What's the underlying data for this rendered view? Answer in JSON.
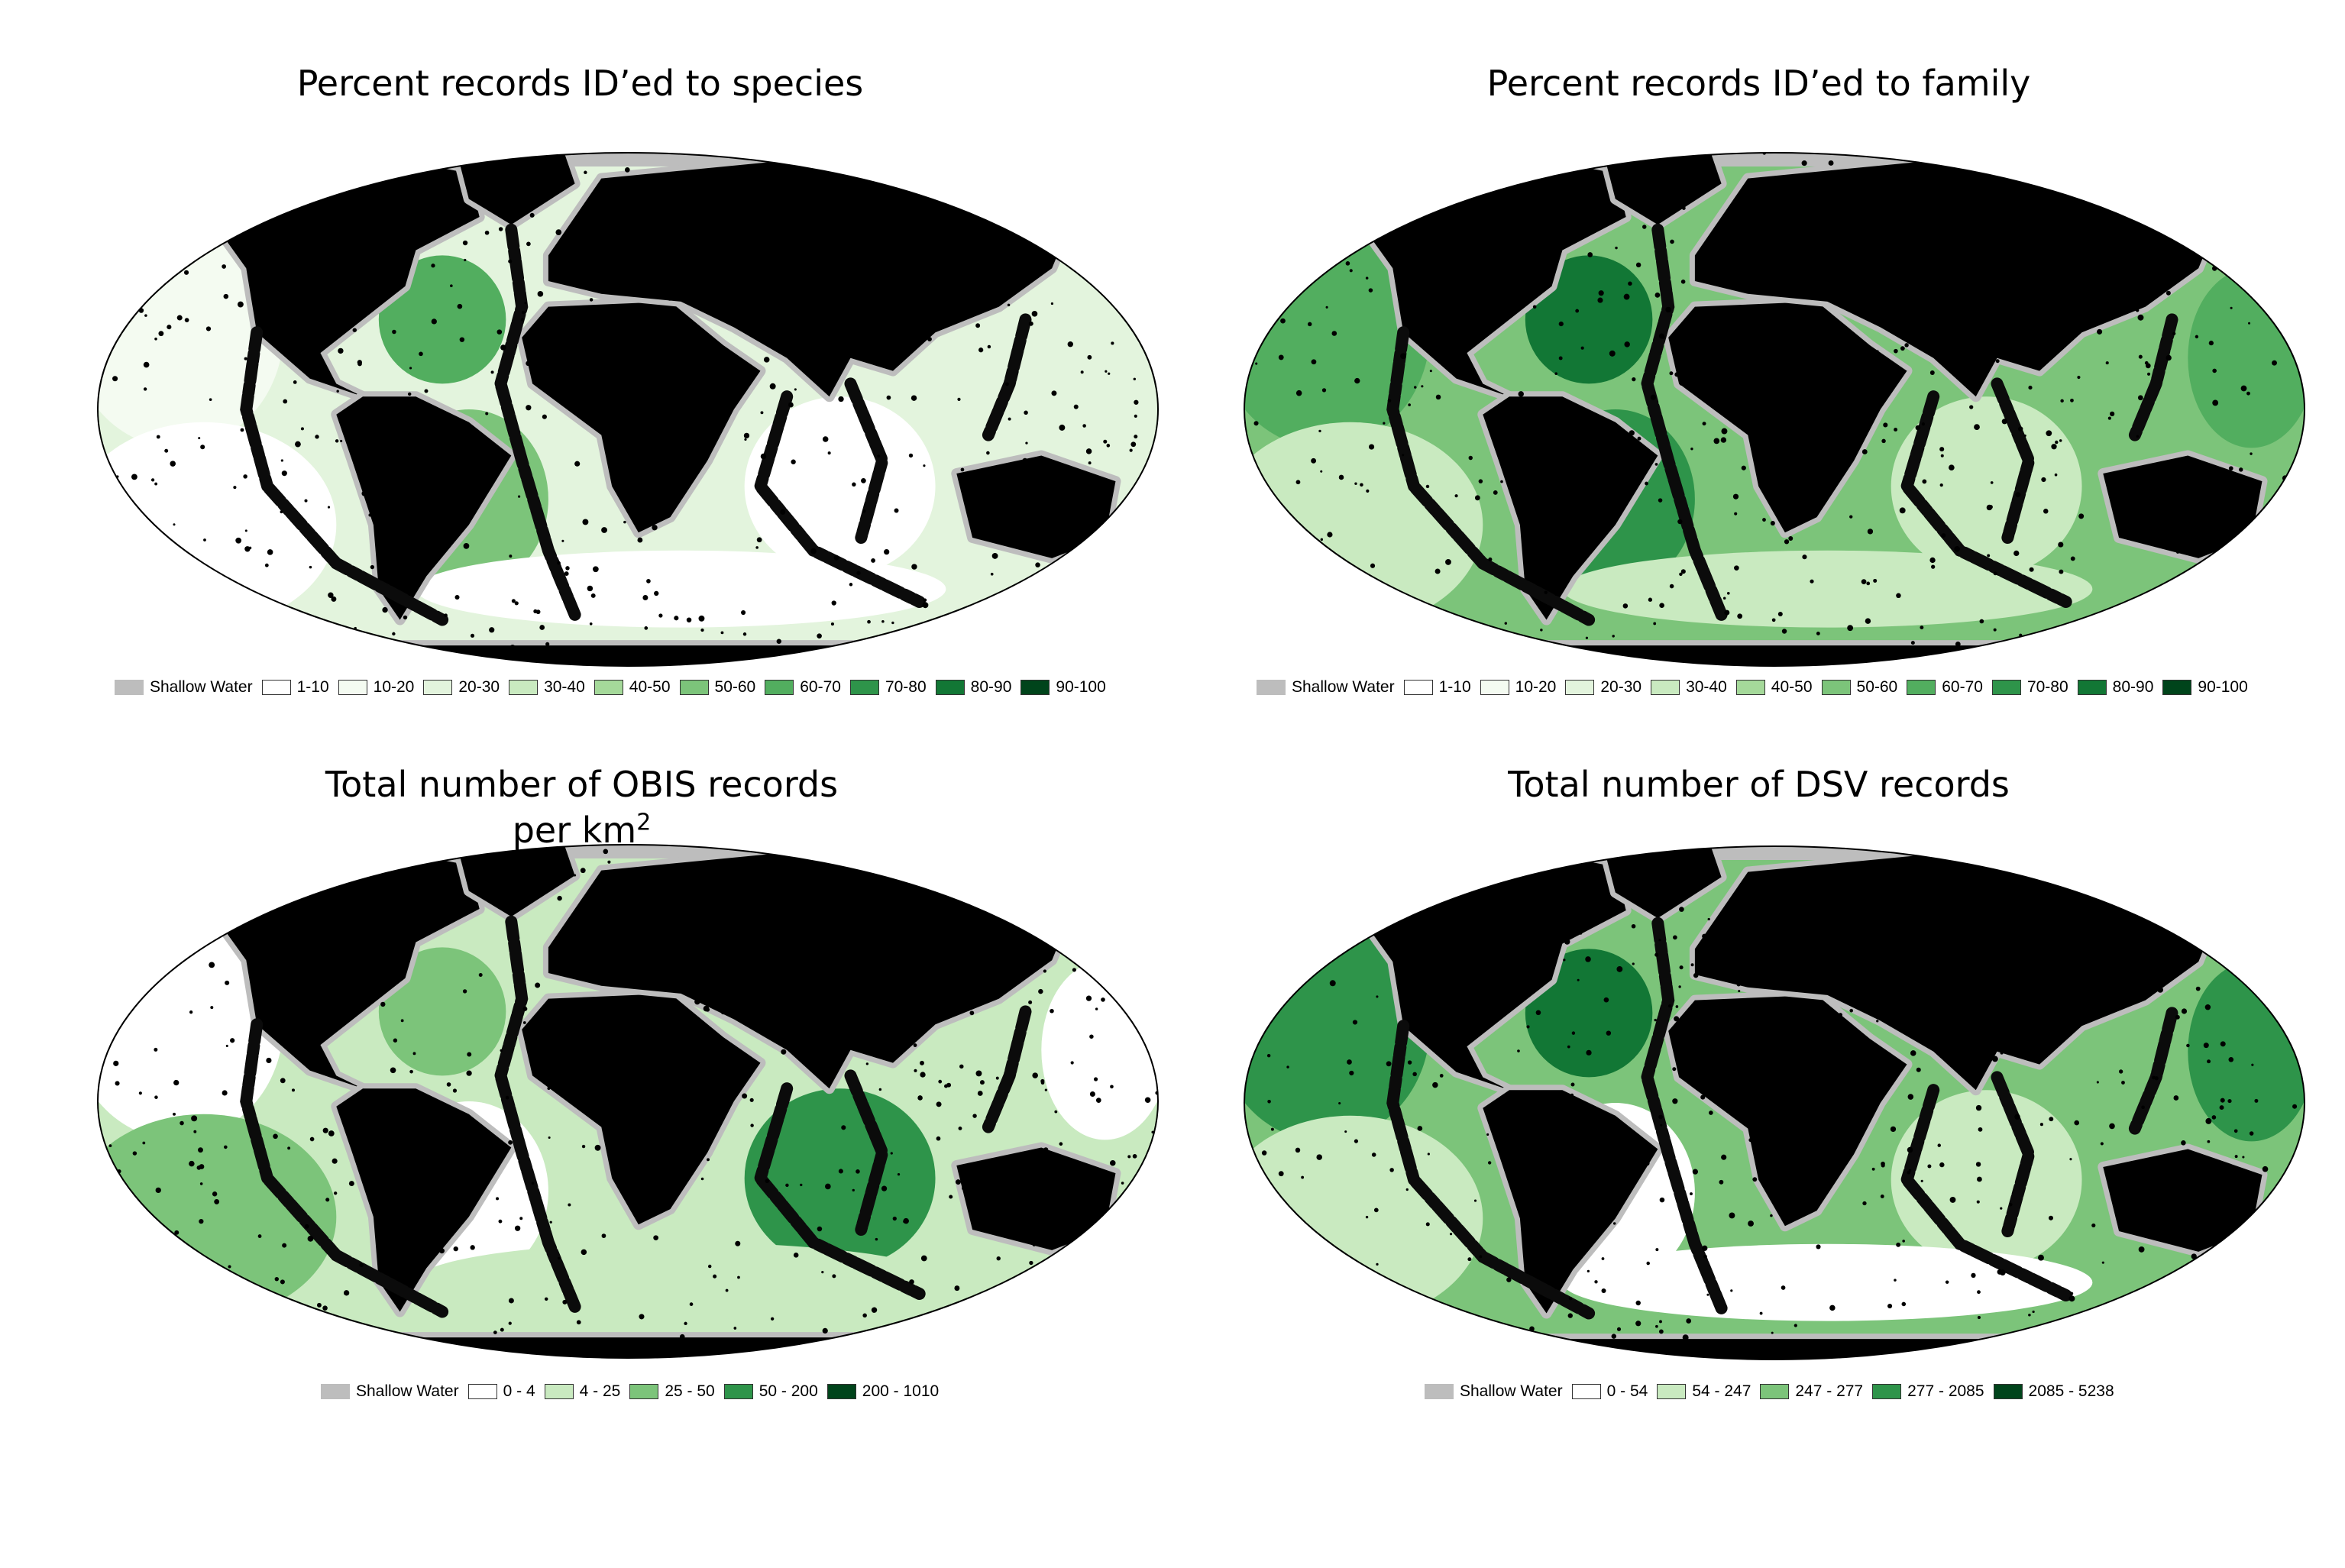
{
  "colors": {
    "land": "#000000",
    "shallow": "#bdbdbd",
    "ocean_outline": "#000000"
  },
  "panels": [
    {
      "id": "species",
      "title": "Percent records ID’ed to species",
      "title2": "",
      "legend": [
        {
          "label": "Shallow Water",
          "color": "#bdbdbd"
        },
        {
          "label": "1-10",
          "color": "#ffffff"
        },
        {
          "label": "10-20",
          "color": "#f4fbf1"
        },
        {
          "label": "20-30",
          "color": "#e3f4dd"
        },
        {
          "label": "30-40",
          "color": "#c9eac0"
        },
        {
          "label": "40-50",
          "color": "#a5d99a"
        },
        {
          "label": "50-60",
          "color": "#7cc47a"
        },
        {
          "label": "60-70",
          "color": "#52ae5f"
        },
        {
          "label": "70-80",
          "color": "#2e944a"
        },
        {
          "label": "80-90",
          "color": "#127735"
        },
        {
          "label": "90-100",
          "color": "#00441b"
        }
      ]
    },
    {
      "id": "family",
      "title": "Percent records ID’ed to family",
      "title2": "",
      "legend": [
        {
          "label": "Shallow Water",
          "color": "#bdbdbd"
        },
        {
          "label": "1-10",
          "color": "#ffffff"
        },
        {
          "label": "10-20",
          "color": "#f4fbf1"
        },
        {
          "label": "20-30",
          "color": "#e3f4dd"
        },
        {
          "label": "30-40",
          "color": "#c9eac0"
        },
        {
          "label": "40-50",
          "color": "#a5d99a"
        },
        {
          "label": "50-60",
          "color": "#7cc47a"
        },
        {
          "label": "60-70",
          "color": "#52ae5f"
        },
        {
          "label": "70-80",
          "color": "#2e944a"
        },
        {
          "label": "80-90",
          "color": "#127735"
        },
        {
          "label": "90-100",
          "color": "#00441b"
        }
      ]
    },
    {
      "id": "obis",
      "title": "Total number of OBIS records",
      "title2": "per km",
      "title2_sup": "2",
      "legend": [
        {
          "label": "Shallow Water",
          "color": "#bdbdbd"
        },
        {
          "label": "0 - 4",
          "color": "#ffffff"
        },
        {
          "label": "4 - 25",
          "color": "#c9eac0"
        },
        {
          "label": "25 - 50",
          "color": "#7cc47a"
        },
        {
          "label": "50 - 200",
          "color": "#2e944a"
        },
        {
          "label": "200 - 1010",
          "color": "#00441b"
        }
      ]
    },
    {
      "id": "dsv",
      "title": "Total number of DSV records",
      "title2": "",
      "legend": [
        {
          "label": "Shallow Water",
          "color": "#bdbdbd"
        },
        {
          "label": "0 - 54",
          "color": "#ffffff"
        },
        {
          "label": "54 - 247",
          "color": "#c9eac0"
        },
        {
          "label": "247 - 277",
          "color": "#7cc47a"
        },
        {
          "label": "277 - 2085",
          "color": "#2e944a"
        },
        {
          "label": "2085 - 5238",
          "color": "#00441b"
        }
      ]
    }
  ]
}
